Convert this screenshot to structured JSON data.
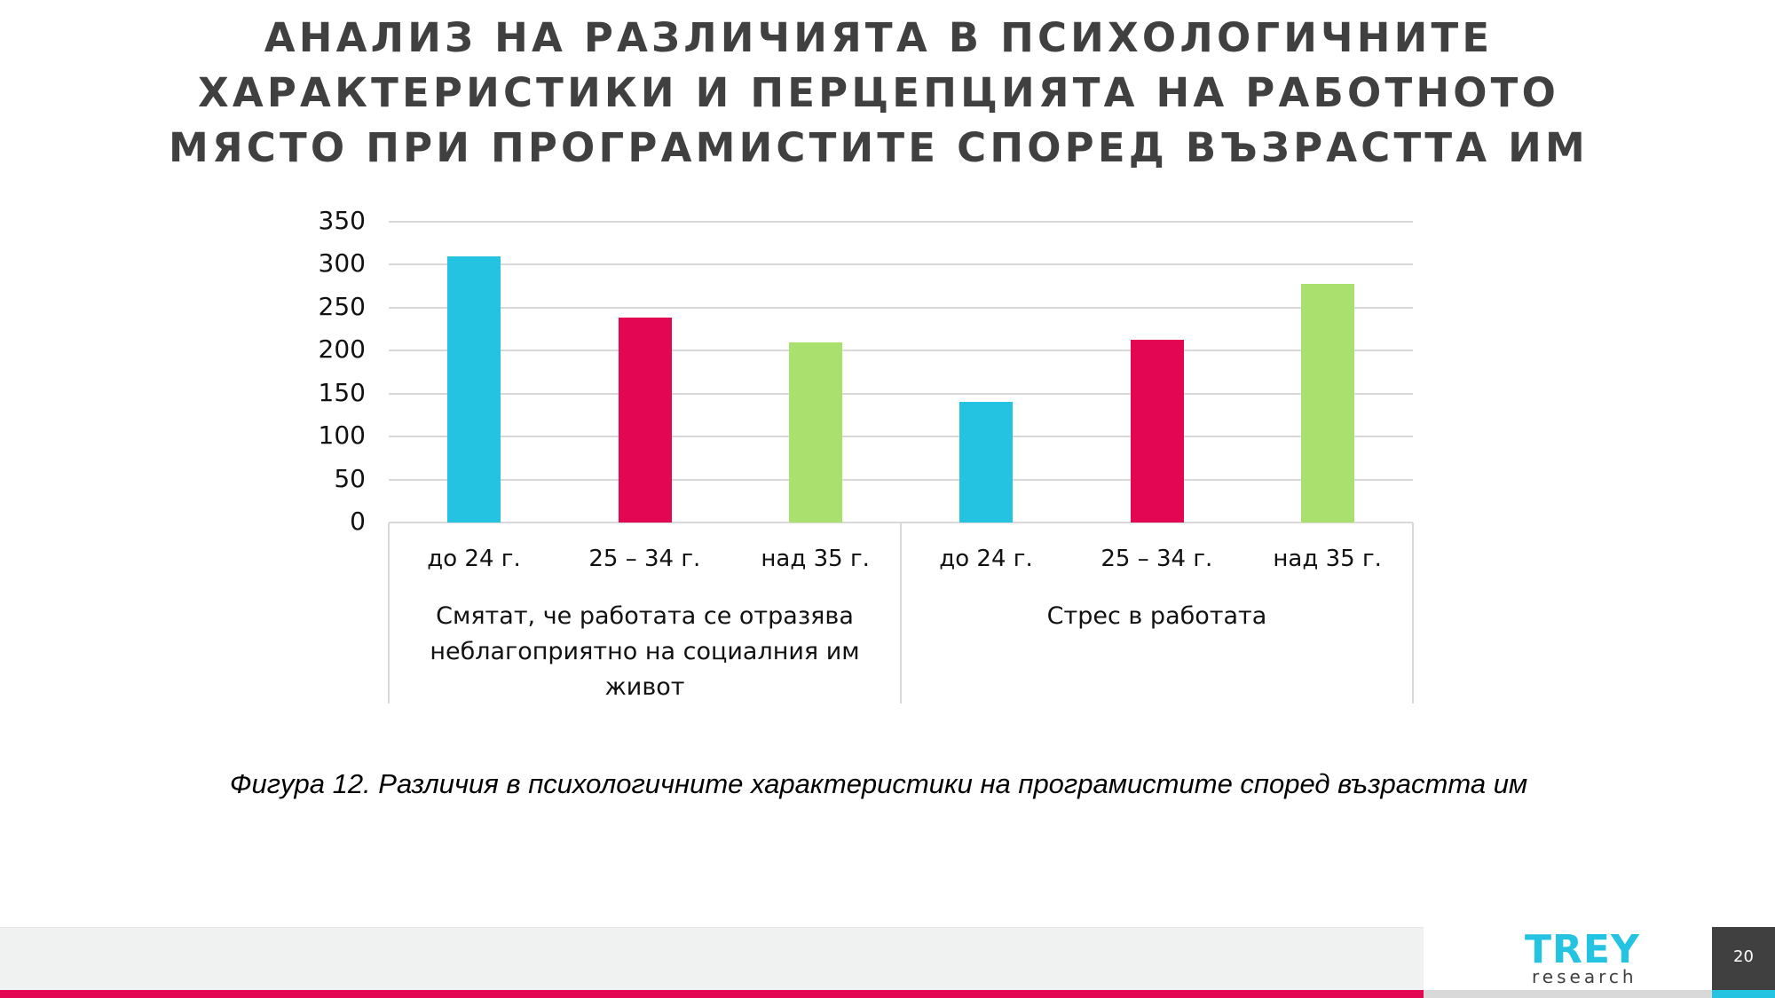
{
  "slide": {
    "title_lines": [
      "АНАЛИЗ НА РАЗЛИЧИЯТА В ПСИХОЛОГИЧНИТЕ",
      "ХАРАКТЕРИСТИКИ И ПЕРЦЕПЦИЯТА НА РАБОТНОТО",
      "МЯСТО ПРИ ПРОГРАМИСТИТЕ СПОРЕД ВЪЗРАСТТА ИМ"
    ],
    "caption": "Фигура 12. Различия в психологичните характеристики на програмистите според възрастта им",
    "page_number": "20"
  },
  "logo": {
    "brand": "TREY",
    "sub": "research",
    "color": "#25c3e2"
  },
  "colors": {
    "under24": "#25c3e2",
    "25to34": "#e30653",
    "over35": "#a9e06e",
    "footer_accent": "#e30653",
    "title": "#404040"
  },
  "chart_data": {
    "type": "bar",
    "title": "АНАЛИЗ НА РАЗЛИЧИЯТА В ПСИХОЛОГИЧНИТЕ ХАРАКТЕРИСТИКИ И ПЕРЦЕПЦИЯТА НА РАБОТНОТО МЯСТО ПРИ ПРОГРАМИСТИТЕ СПОРЕД ВЪЗРАСТТА ИМ",
    "xlabel": "",
    "ylabel": "",
    "ylim": [
      0,
      350
    ],
    "yticks": [
      "0",
      "50",
      "100",
      "150",
      "200",
      "250",
      "300",
      "350"
    ],
    "grid": true,
    "legend": null,
    "groups": [
      {
        "label": "Смятат, че работата се отразява неблагоприятно на социалния им живот",
        "label_lines": [
          "Смятат, че работата се отразява",
          "неблагоприятно на социалния им",
          "живот"
        ],
        "categories": [
          "до 24 г.",
          "25 – 34 г.",
          "над 35 г."
        ],
        "values": [
          310,
          239,
          210
        ]
      },
      {
        "label": "Стрес в работата",
        "label_lines": [
          "Стрес в работата"
        ],
        "categories": [
          "до 24 г.",
          "25 – 34 г.",
          "над 35 г."
        ],
        "values": [
          140,
          213,
          278
        ]
      }
    ],
    "series": [
      {
        "name": "до 24 г.",
        "color": "#25c3e2",
        "values": [
          310,
          140
        ]
      },
      {
        "name": "25 – 34 г.",
        "color": "#e30653",
        "values": [
          239,
          213
        ]
      },
      {
        "name": "над 35 г.",
        "color": "#a9e06e",
        "values": [
          210,
          278
        ]
      }
    ]
  }
}
